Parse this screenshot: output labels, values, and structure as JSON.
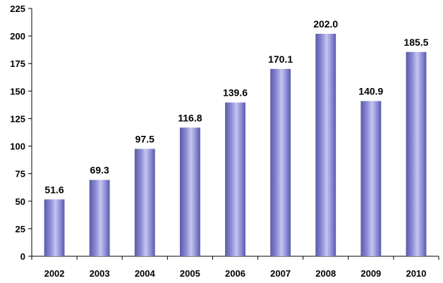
{
  "chart_data": {
    "type": "bar",
    "categories": [
      "2002",
      "2003",
      "2004",
      "2005",
      "2006",
      "2007",
      "2008",
      "2009",
      "2010"
    ],
    "values": [
      51.6,
      69.3,
      97.5,
      116.8,
      139.6,
      170.1,
      202.0,
      140.9,
      185.5
    ],
    "data_labels": [
      "51.6",
      "69.3",
      "97.5",
      "116.8",
      "139.6",
      "170.1",
      "202.0",
      "140.9",
      "185.5"
    ],
    "y_ticks": [
      "0",
      "25",
      "50",
      "75",
      "100",
      "125",
      "150",
      "175",
      "200",
      "225"
    ],
    "title": "",
    "xlabel": "",
    "ylabel": "",
    "ylim": [
      0,
      225
    ],
    "grid": false,
    "colors": {
      "bar_edge": "#5a5aa6",
      "bar_center": "#c6c6f0",
      "bar_mid": "#8a8ad6",
      "axis": "#000000"
    }
  }
}
